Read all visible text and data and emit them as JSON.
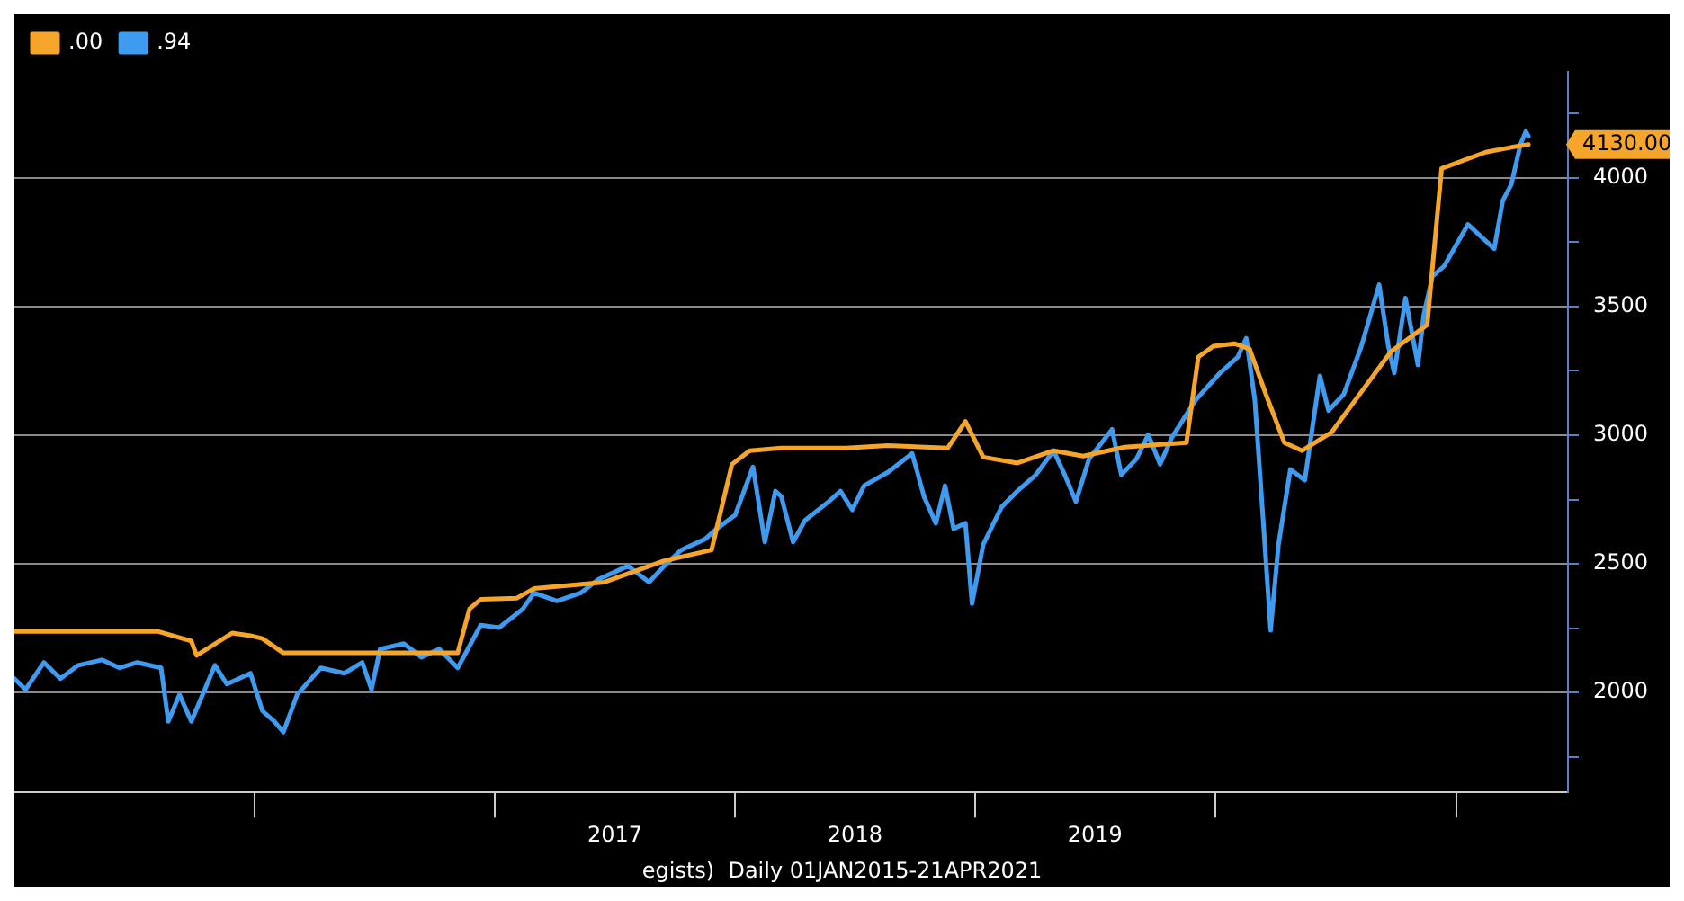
{
  "chart_data": {
    "type": "line",
    "annotations": [
      {
        "text": "4130.00",
        "x": "2021-04-21",
        "y": 4130
      },
      "egists)  Daily 01JAN2015-21APR2021"
    ],
    "series": [
      {
        "name": ".00",
        "color": "#f5a52a",
        "x": [
          "2015-01-01",
          "2015-08-08",
          "2015-09-27",
          "2015-10-05",
          "2015-11-28",
          "2015-12-26",
          "2016-01-13",
          "2016-02-14",
          "2016-11-05",
          "2016-11-23",
          "2016-12-10",
          "2017-02-03",
          "2017-03-01",
          "2017-06-16",
          "2017-09-15",
          "2017-11-26",
          "2017-12-27",
          "2018-01-23",
          "2018-03-12",
          "2018-06-19",
          "2018-08-21",
          "2018-11-20",
          "2018-12-17",
          "2019-01-13",
          "2019-03-06",
          "2019-04-30",
          "2019-06-14",
          "2019-08-16",
          "2019-11-18",
          "2019-12-06",
          "2019-12-29",
          "2020-01-30",
          "2020-02-22",
          "2020-03-18",
          "2020-04-15",
          "2020-05-12",
          "2020-06-26",
          "2020-09-24",
          "2020-11-18",
          "2020-12-10",
          "2021-02-15",
          "2021-03-26",
          "2021-04-21"
        ],
        "values": [
          2237,
          2237,
          2200,
          2144,
          2231,
          2221,
          2210,
          2154,
          2154,
          2325,
          2362,
          2367,
          2404,
          2429,
          2512,
          2554,
          2887,
          2940,
          2950,
          2950,
          2960,
          2950,
          3054,
          2915,
          2892,
          2940,
          2919,
          2954,
          2971,
          3304,
          3346,
          3356,
          3335,
          3158,
          2971,
          2940,
          3012,
          3325,
          3429,
          4037,
          4100,
          4119,
          4130
        ]
      },
      {
        "name": ".94",
        "color": "#3f9bf0",
        "x": [
          "2015-01-01",
          "2015-01-18",
          "2015-02-15",
          "2015-03-12",
          "2015-04-08",
          "2015-05-14",
          "2015-06-10",
          "2015-07-07",
          "2015-08-12",
          "2015-08-23",
          "2015-09-09",
          "2015-09-27",
          "2015-11-02",
          "2015-11-20",
          "2015-12-26",
          "2016-01-13",
          "2016-01-31",
          "2016-02-14",
          "2016-03-06",
          "2016-04-11",
          "2016-05-17",
          "2016-06-13",
          "2016-06-27",
          "2016-07-10",
          "2016-08-15",
          "2016-09-11",
          "2016-10-08",
          "2016-11-05",
          "2016-12-10",
          "2017-01-07",
          "2017-02-12",
          "2017-03-01",
          "2017-04-05",
          "2017-05-11",
          "2017-06-07",
          "2017-07-22",
          "2017-08-23",
          "2017-09-15",
          "2017-10-11",
          "2017-11-16",
          "2017-12-04",
          "2018-01-01",
          "2018-01-28",
          "2018-02-15",
          "2018-03-03",
          "2018-03-12",
          "2018-03-30",
          "2018-04-17",
          "2018-05-23",
          "2018-06-10",
          "2018-06-28",
          "2018-07-16",
          "2018-08-21",
          "2018-09-27",
          "2018-10-15",
          "2018-11-02",
          "2018-11-16",
          "2018-11-29",
          "2018-12-17",
          "2018-12-27",
          "2019-01-13",
          "2019-02-10",
          "2019-03-06",
          "2019-04-03",
          "2019-04-30",
          "2019-05-17",
          "2019-06-03",
          "2019-06-23",
          "2019-07-28",
          "2019-08-11",
          "2019-09-03",
          "2019-09-21",
          "2019-10-09",
          "2019-10-27",
          "2019-12-02",
          "2020-01-08",
          "2020-02-04",
          "2020-02-17",
          "2020-03-01",
          "2020-03-14",
          "2020-03-25",
          "2020-04-06",
          "2020-04-24",
          "2020-05-16",
          "2020-06-08",
          "2020-06-21",
          "2020-07-14",
          "2020-08-10",
          "2020-09-06",
          "2020-09-20",
          "2020-09-29",
          "2020-10-16",
          "2020-11-04",
          "2020-11-13",
          "2020-11-26",
          "2020-12-14",
          "2021-01-19",
          "2021-02-28",
          "2021-03-13",
          "2021-03-26",
          "2021-04-09",
          "2021-04-17",
          "2021-04-21"
        ],
        "values": [
          2054,
          2012,
          2117,
          2054,
          2106,
          2127,
          2096,
          2117,
          2096,
          1888,
          1992,
          1888,
          2106,
          2033,
          2075,
          1929,
          1888,
          1846,
          1992,
          2096,
          2075,
          2117,
          2012,
          2169,
          2190,
          2137,
          2169,
          2096,
          2262,
          2252,
          2325,
          2387,
          2356,
          2387,
          2440,
          2492,
          2429,
          2492,
          2554,
          2596,
          2637,
          2690,
          2877,
          2585,
          2783,
          2762,
          2585,
          2669,
          2742,
          2783,
          2710,
          2804,
          2856,
          2929,
          2762,
          2658,
          2804,
          2637,
          2658,
          2346,
          2575,
          2721,
          2783,
          2846,
          2940,
          2846,
          2742,
          2908,
          3023,
          2846,
          2908,
          3002,
          2887,
          2992,
          3137,
          3242,
          3304,
          3377,
          3137,
          2658,
          2242,
          2575,
          2867,
          2825,
          3231,
          3096,
          3158,
          3346,
          3585,
          3346,
          3242,
          3533,
          3273,
          3471,
          3617,
          3658,
          3819,
          3725,
          3912,
          3975,
          4131,
          4181,
          4162
        ]
      }
    ],
    "xlim": [
      "2015-01-01",
      "2021-06-20"
    ],
    "xticks": [
      {
        "value": "2016-01-01",
        "label": null
      },
      {
        "value": "2017-01-01",
        "label": null
      },
      {
        "value": "2017-07-02",
        "label": "2017"
      },
      {
        "value": "2018-01-01",
        "label": null
      },
      {
        "value": "2018-07-02",
        "label": "2018"
      },
      {
        "value": "2019-01-01",
        "label": null
      },
      {
        "value": "2019-07-02",
        "label": "2019"
      },
      {
        "value": "2020-01-01",
        "label": null
      },
      {
        "value": "2021-01-01",
        "label": null
      }
    ],
    "ylim": [
      1612,
      4412
    ],
    "yticks": [
      {
        "value": 1750,
        "label": null
      },
      2000,
      {
        "value": 2250,
        "label": null
      },
      2500,
      {
        "value": 2750,
        "label": null
      },
      3000,
      {
        "value": 3250,
        "label": null
      },
      3500,
      {
        "value": 3750,
        "label": null
      },
      4000,
      {
        "value": 4250,
        "label": null
      }
    ],
    "grid": "y",
    "legend": "top left",
    "marker": "none",
    "line_style": "solid"
  }
}
